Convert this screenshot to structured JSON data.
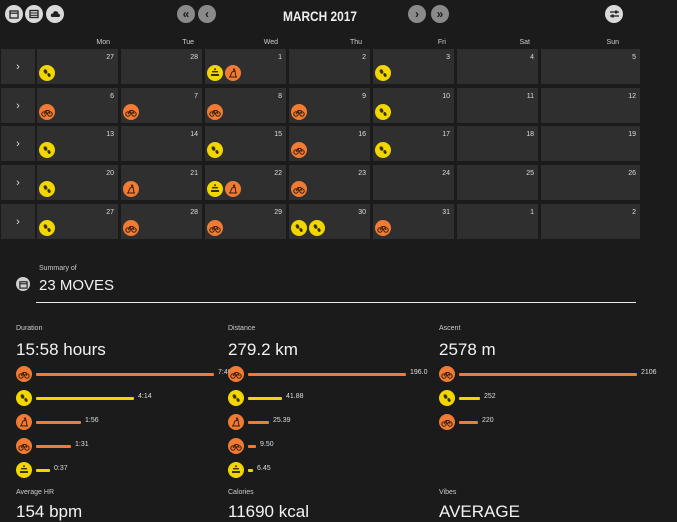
{
  "toolbar": {
    "month_title": "MARCH 2017"
  },
  "weekdays": [
    "Mon",
    "Tue",
    "Wed",
    "Thu",
    "Fri",
    "Sat",
    "Sun"
  ],
  "weeks": [
    {
      "days": [
        {
          "n": "27",
          "acts": [
            "walking"
          ]
        },
        {
          "n": "28",
          "acts": []
        },
        {
          "n": "1",
          "acts": [
            "weights",
            "indoor"
          ]
        },
        {
          "n": "2",
          "acts": []
        },
        {
          "n": "3",
          "acts": [
            "walking"
          ]
        },
        {
          "n": "4",
          "acts": []
        },
        {
          "n": "5",
          "acts": []
        }
      ]
    },
    {
      "days": [
        {
          "n": "6",
          "acts": [
            "cycling"
          ]
        },
        {
          "n": "7",
          "acts": [
            "cycling"
          ]
        },
        {
          "n": "8",
          "acts": [
            "cycling"
          ]
        },
        {
          "n": "9",
          "acts": [
            "cycling"
          ]
        },
        {
          "n": "10",
          "acts": [
            "walking"
          ]
        },
        {
          "n": "11",
          "acts": []
        },
        {
          "n": "12",
          "acts": []
        }
      ]
    },
    {
      "days": [
        {
          "n": "13",
          "acts": [
            "walking"
          ]
        },
        {
          "n": "14",
          "acts": []
        },
        {
          "n": "15",
          "acts": [
            "walking"
          ]
        },
        {
          "n": "16",
          "acts": [
            "cycling"
          ]
        },
        {
          "n": "17",
          "acts": [
            "walking"
          ]
        },
        {
          "n": "18",
          "acts": []
        },
        {
          "n": "19",
          "acts": []
        }
      ]
    },
    {
      "days": [
        {
          "n": "20",
          "acts": [
            "walking"
          ]
        },
        {
          "n": "21",
          "acts": [
            "indoor"
          ]
        },
        {
          "n": "22",
          "acts": [
            "weights",
            "indoor"
          ]
        },
        {
          "n": "23",
          "acts": [
            "cycling"
          ]
        },
        {
          "n": "24",
          "acts": []
        },
        {
          "n": "25",
          "acts": []
        },
        {
          "n": "26",
          "acts": []
        }
      ]
    },
    {
      "days": [
        {
          "n": "27",
          "acts": [
            "walking"
          ]
        },
        {
          "n": "28",
          "acts": [
            "cycling"
          ]
        },
        {
          "n": "29",
          "acts": [
            "cycling"
          ]
        },
        {
          "n": "30",
          "acts": [
            "walking",
            "walking"
          ]
        },
        {
          "n": "31",
          "acts": [
            "cycling"
          ]
        },
        {
          "n": "1",
          "acts": []
        },
        {
          "n": "2",
          "acts": []
        }
      ]
    }
  ],
  "summary": {
    "label": "Summary of",
    "title": "23 MOVES"
  },
  "stats": {
    "duration": {
      "label": "Duration",
      "value": "15:58 hours",
      "rows": [
        {
          "type": "cycling",
          "value": "7:40",
          "fraction": 1.0
        },
        {
          "type": "walking",
          "value": "4:14",
          "fraction": 0.552
        },
        {
          "type": "indoor",
          "value": "1:56",
          "fraction": 0.252
        },
        {
          "type": "cycling",
          "value": "1:31",
          "fraction": 0.198
        },
        {
          "type": "weights",
          "value": "0:37",
          "fraction": 0.08
        }
      ]
    },
    "distance": {
      "label": "Distance",
      "value": "279.2 km",
      "rows": [
        {
          "type": "cycling",
          "value": "196.0",
          "fraction": 1.0
        },
        {
          "type": "walking",
          "value": "41.88",
          "fraction": 0.214
        },
        {
          "type": "indoor",
          "value": "25.39",
          "fraction": 0.13
        },
        {
          "type": "cycling",
          "value": "9.50",
          "fraction": 0.048
        },
        {
          "type": "weights",
          "value": "6.45",
          "fraction": 0.033
        }
      ]
    },
    "ascent": {
      "label": "Ascent",
      "value": "2578 m",
      "rows": [
        {
          "type": "cycling",
          "value": "2106",
          "fraction": 1.0
        },
        {
          "type": "walking",
          "value": "252",
          "fraction": 0.12
        },
        {
          "type": "cycling",
          "value": "220",
          "fraction": 0.104
        }
      ]
    },
    "hr": {
      "label": "Average HR",
      "value": "154 bpm"
    },
    "calories": {
      "label": "Calories",
      "value": "11690 kcal"
    },
    "vibes": {
      "label": "Vibes",
      "value": "AVERAGE"
    }
  },
  "colors": {
    "orange": "#ef7b34",
    "yellow": "#f2d600",
    "cell": "#2f2f2f",
    "bg": "#1b1b1b"
  }
}
